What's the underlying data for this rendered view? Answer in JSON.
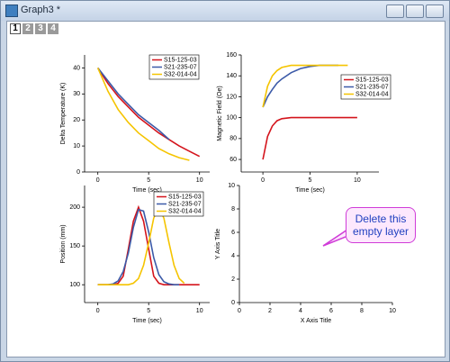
{
  "window": {
    "title": "Graph3 *",
    "tabs": [
      "1",
      "2",
      "3",
      "4"
    ],
    "callout": "Delete this empty layer"
  },
  "chart_data": [
    {
      "type": "line",
      "xlabel": "Time (sec)",
      "ylabel": "Delta Temperature (K)",
      "x": [
        0,
        1,
        2,
        3,
        4,
        5,
        6,
        7,
        8,
        9,
        10
      ],
      "series": [
        {
          "name": "S15-125-03",
          "color": "#d4141c",
          "values": [
            40,
            34,
            29,
            25,
            21,
            18,
            15,
            12.5,
            10,
            8,
            6
          ]
        },
        {
          "name": "S21-235-07",
          "color": "#3c5aa8",
          "values": [
            40,
            35,
            30,
            26,
            22,
            19,
            16,
            12.5,
            null,
            null,
            null
          ]
        },
        {
          "name": "S32-014-04",
          "color": "#f5c400",
          "values": [
            40,
            31,
            24,
            19,
            15,
            12,
            9,
            7,
            5.5,
            4.5,
            null
          ]
        }
      ],
      "xlim": [
        -1.3,
        11
      ],
      "ylim": [
        0,
        45
      ],
      "xticks": [
        0,
        5,
        10
      ],
      "yticks": [
        0,
        10,
        20,
        30,
        40
      ]
    },
    {
      "type": "line",
      "xlabel": "Time (sec)",
      "ylabel": "Magnetic Field (Oe)",
      "x": [
        0,
        0.5,
        1,
        1.5,
        2,
        3,
        4,
        5,
        6,
        7,
        8,
        9,
        10
      ],
      "series": [
        {
          "name": "S15-125-03",
          "color": "#d4141c",
          "values": [
            60,
            82,
            92,
            97,
            99,
            100,
            100,
            100,
            100,
            100,
            100,
            100,
            100
          ]
        },
        {
          "name": "S21-235-07",
          "color": "#3c5aa8",
          "values": [
            110,
            120,
            127,
            133,
            137,
            143,
            147,
            149,
            150,
            150,
            150,
            null,
            null
          ]
        },
        {
          "name": "S32-014-04",
          "color": "#f5c400",
          "values": [
            110,
            130,
            140,
            145,
            148,
            150,
            150,
            150,
            150,
            150,
            150,
            150,
            null
          ]
        }
      ],
      "xlim": [
        -2.3,
        12.3
      ],
      "ylim": [
        48,
        160
      ],
      "xticks": [
        0,
        5,
        10
      ],
      "yticks": [
        60,
        80,
        100,
        120,
        140,
        160
      ]
    },
    {
      "type": "line",
      "xlabel": "Time (sec)",
      "ylabel": "Position (mm)",
      "x": [
        0,
        0.5,
        1,
        1.5,
        2,
        2.5,
        3,
        3.5,
        4,
        4.5,
        5,
        5.5,
        6,
        6.5,
        7,
        7.5,
        8,
        8.5,
        9,
        9.5,
        10
      ],
      "series": [
        {
          "name": "S15-125-03",
          "color": "#d4141c",
          "values": [
            100,
            100,
            100,
            100,
            102,
            111,
            146,
            182,
            200,
            182,
            146,
            111,
            102,
            100,
            100,
            100,
            100,
            100,
            100,
            100,
            100
          ]
        },
        {
          "name": "S21-235-07",
          "color": "#3c5aa8",
          "values": [
            100,
            100,
            100,
            101,
            105,
            117,
            141,
            174,
            197,
            195,
            168,
            135,
            113,
            104,
            101,
            100,
            100,
            null,
            null,
            null,
            null
          ]
        },
        {
          "name": "S32-014-04",
          "color": "#f5c400",
          "values": [
            100,
            100,
            100,
            100,
            100,
            100,
            100,
            102,
            108,
            125,
            154,
            186,
            200,
            186,
            154,
            125,
            108,
            102,
            null,
            null,
            null
          ]
        }
      ],
      "xlim": [
        -1.3,
        11
      ],
      "ylim": [
        77,
        228
      ],
      "xticks": [
        0,
        5,
        10
      ],
      "yticks": [
        100,
        150,
        200
      ]
    },
    {
      "type": "line",
      "xlabel": "X Axis Title",
      "ylabel": "Y Axis Title",
      "xlim": [
        0,
        10
      ],
      "ylim": [
        0,
        10
      ],
      "xticks": [
        0,
        2,
        4,
        6,
        8,
        10
      ],
      "yticks": [
        0,
        2,
        4,
        6,
        8,
        10
      ]
    }
  ]
}
